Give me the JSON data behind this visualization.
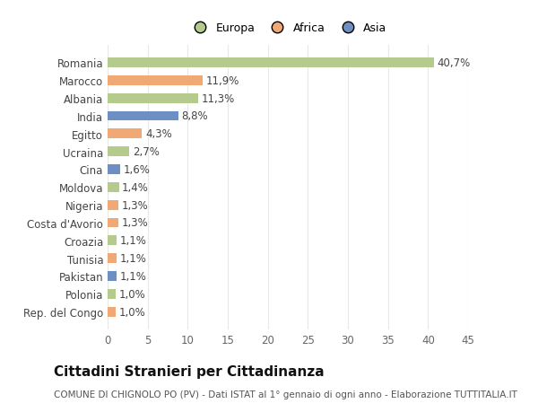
{
  "categories": [
    "Rep. del Congo",
    "Polonia",
    "Pakistan",
    "Tunisia",
    "Croazia",
    "Costa d'Avorio",
    "Nigeria",
    "Moldova",
    "Cina",
    "Ucraina",
    "Egitto",
    "India",
    "Albania",
    "Marocco",
    "Romania"
  ],
  "values": [
    1.0,
    1.0,
    1.1,
    1.1,
    1.1,
    1.3,
    1.3,
    1.4,
    1.6,
    2.7,
    4.3,
    8.8,
    11.3,
    11.9,
    40.7
  ],
  "labels": [
    "1,0%",
    "1,0%",
    "1,1%",
    "1,1%",
    "1,1%",
    "1,3%",
    "1,3%",
    "1,4%",
    "1,6%",
    "2,7%",
    "4,3%",
    "8,8%",
    "11,3%",
    "11,9%",
    "40,7%"
  ],
  "colors": [
    "#f0a875",
    "#b5cb8e",
    "#6e8fc4",
    "#f0a875",
    "#b5cb8e",
    "#f0a875",
    "#f0a875",
    "#b5cb8e",
    "#6e8fc4",
    "#b5cb8e",
    "#f0a875",
    "#6e8fc4",
    "#b5cb8e",
    "#f0a875",
    "#b5cb8e"
  ],
  "legend_labels": [
    "Europa",
    "Africa",
    "Asia"
  ],
  "legend_colors": [
    "#b5cb8e",
    "#f0a875",
    "#6e8fc4"
  ],
  "title": "Cittadini Stranieri per Cittadinanza",
  "subtitle": "COMUNE DI CHIGNOLO PO (PV) - Dati ISTAT al 1° gennaio di ogni anno - Elaborazione TUTTITALIA.IT",
  "xlim": [
    0,
    45
  ],
  "xticks": [
    0,
    5,
    10,
    15,
    20,
    25,
    30,
    35,
    40,
    45
  ],
  "background_color": "#ffffff",
  "bar_height": 0.55,
  "grid_color": "#e8e8e8",
  "label_fontsize": 8.5,
  "tick_fontsize": 8.5,
  "ylabel_fontsize": 8.5,
  "title_fontsize": 11,
  "subtitle_fontsize": 7.5
}
